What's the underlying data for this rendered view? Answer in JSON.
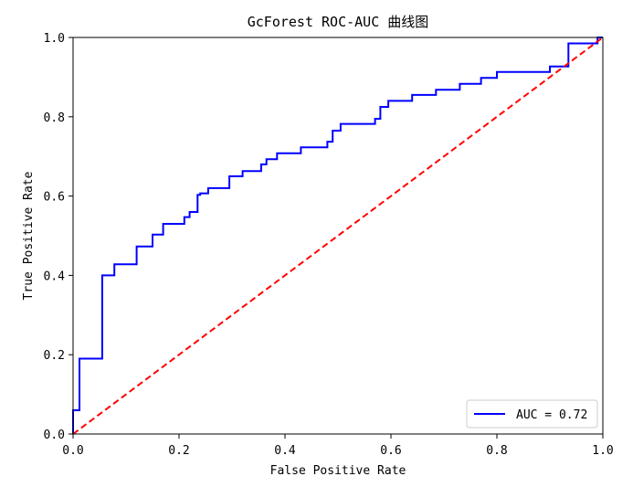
{
  "chart_data": {
    "type": "line",
    "title": "GcForest ROC-AUC 曲线图",
    "xlabel": "False Positive Rate",
    "ylabel": "True Positive Rate",
    "xlim": [
      0.0,
      1.0
    ],
    "ylim": [
      0.0,
      1.0
    ],
    "xticks": [
      "0.0",
      "0.2",
      "0.4",
      "0.6",
      "0.8",
      "1.0"
    ],
    "yticks": [
      "0.0",
      "0.2",
      "0.4",
      "0.6",
      "0.8",
      "1.0"
    ],
    "grid": false,
    "legend": {
      "position": "lower-right",
      "entries": [
        "AUC = 0.72"
      ]
    },
    "series": [
      {
        "name": "AUC = 0.72",
        "color": "#0000ff",
        "style": "solid",
        "x": [
          0.0,
          0.0,
          0.012,
          0.012,
          0.055,
          0.055,
          0.078,
          0.078,
          0.12,
          0.12,
          0.15,
          0.15,
          0.17,
          0.17,
          0.21,
          0.21,
          0.22,
          0.22,
          0.235,
          0.235,
          0.24,
          0.24,
          0.255,
          0.255,
          0.295,
          0.295,
          0.32,
          0.32,
          0.355,
          0.355,
          0.365,
          0.365,
          0.385,
          0.385,
          0.43,
          0.43,
          0.48,
          0.48,
          0.49,
          0.49,
          0.505,
          0.505,
          0.57,
          0.57,
          0.58,
          0.58,
          0.595,
          0.595,
          0.64,
          0.64,
          0.685,
          0.685,
          0.73,
          0.73,
          0.77,
          0.77,
          0.8,
          0.8,
          0.9,
          0.9,
          0.935,
          0.935,
          0.99,
          0.99,
          1.0
        ],
        "y": [
          0.0,
          0.06,
          0.06,
          0.19,
          0.19,
          0.4,
          0.4,
          0.428,
          0.428,
          0.473,
          0.473,
          0.503,
          0.503,
          0.53,
          0.53,
          0.547,
          0.547,
          0.56,
          0.56,
          0.603,
          0.603,
          0.607,
          0.607,
          0.62,
          0.62,
          0.65,
          0.65,
          0.663,
          0.663,
          0.68,
          0.68,
          0.693,
          0.693,
          0.708,
          0.708,
          0.723,
          0.723,
          0.737,
          0.737,
          0.765,
          0.765,
          0.782,
          0.782,
          0.795,
          0.795,
          0.825,
          0.825,
          0.84,
          0.84,
          0.855,
          0.855,
          0.868,
          0.868,
          0.883,
          0.883,
          0.898,
          0.898,
          0.913,
          0.913,
          0.927,
          0.927,
          0.985,
          0.985,
          1.0,
          1.0
        ]
      },
      {
        "name": "",
        "color": "#ff0000",
        "style": "dashed",
        "x": [
          0.0,
          1.0
        ],
        "y": [
          0.0,
          1.0
        ]
      }
    ]
  }
}
